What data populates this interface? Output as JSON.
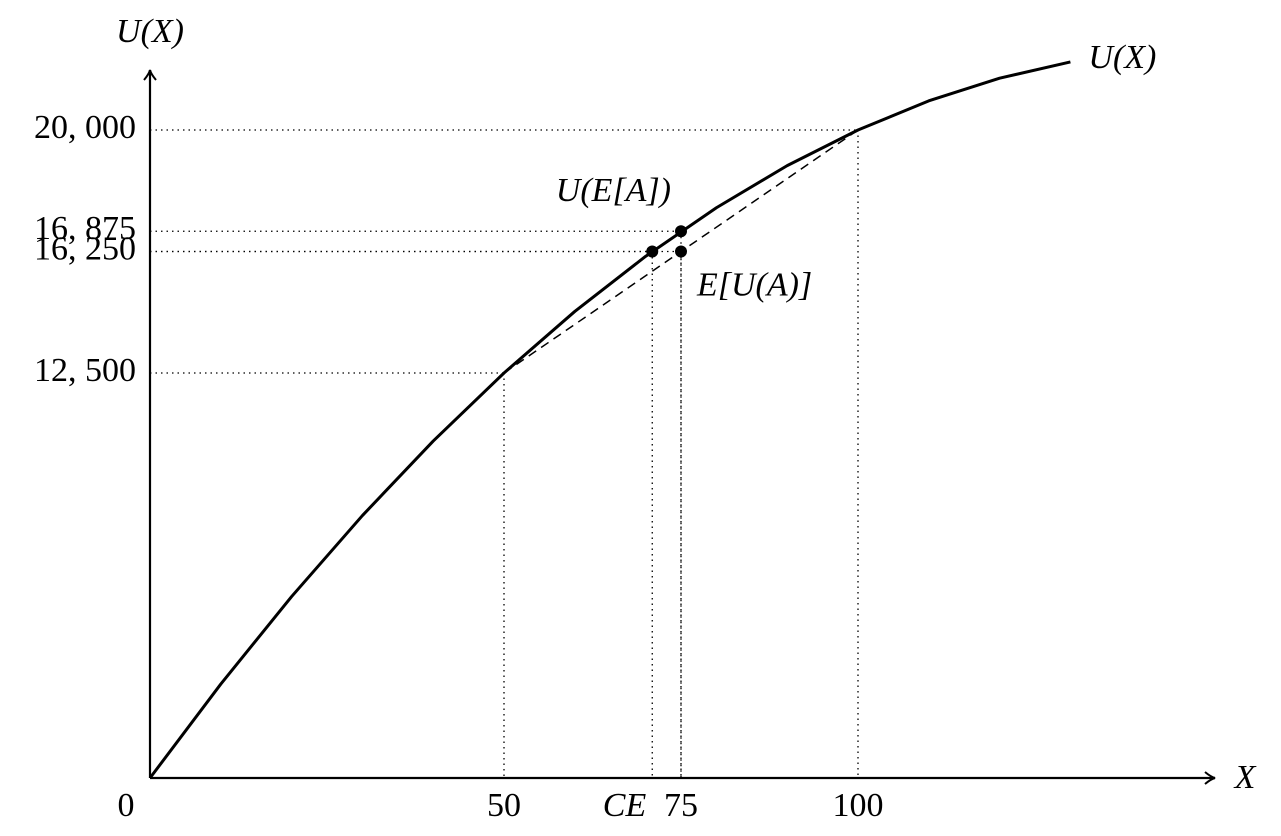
{
  "chart_data": {
    "type": "line",
    "xlabel": "X",
    "ylabel": "U(X)",
    "x": [
      0,
      10,
      20,
      30,
      40,
      50,
      60,
      70,
      80,
      90,
      100,
      110,
      120,
      130
    ],
    "series": [
      {
        "name": "U(X)",
        "color": "#000000",
        "values": [
          0,
          2900,
          5600,
          8100,
          10400,
          12500,
          14400,
          16100,
          17600,
          18900,
          20000,
          20900,
          21600,
          22100
        ]
      }
    ],
    "xlim": [
      0,
      150
    ],
    "ylim": [
      0,
      22500
    ],
    "xticks": [
      0,
      50,
      {
        "value": 70.94,
        "label": "CE"
      },
      75,
      100
    ],
    "yticks": [
      {
        "value": 12500,
        "label": "12, 500"
      },
      {
        "value": 16250,
        "label": "16, 250"
      },
      {
        "value": 16875,
        "label": "16, 875"
      },
      {
        "value": 20000,
        "label": "20, 000"
      }
    ],
    "chord": {
      "x": [
        50,
        100
      ],
      "values": [
        12500,
        20000
      ]
    },
    "points": [
      {
        "label": "U(E[A])",
        "x": 75,
        "y": 16875
      },
      {
        "label": "E[U(A)]",
        "x": 75,
        "y": 16250
      },
      {
        "x": 70.94,
        "y": 16250
      }
    ]
  }
}
